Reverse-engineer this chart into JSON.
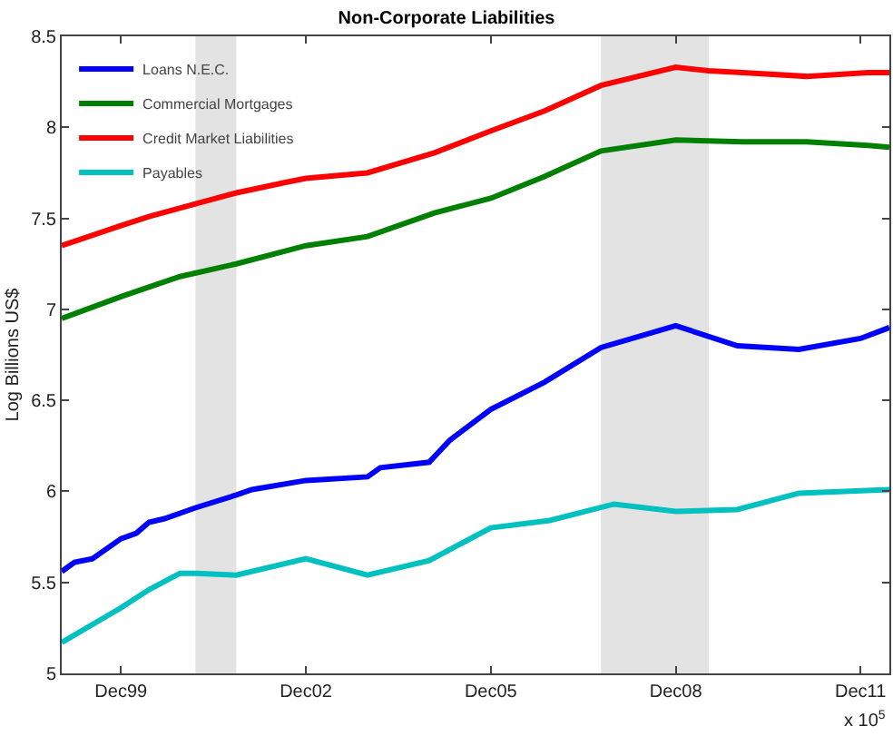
{
  "chart_data": {
    "type": "line",
    "title": "Non-Corporate Liabilities",
    "ylabel": "Log Billions US$",
    "xlim": [
      "1998-12-15",
      "2012-05-20"
    ],
    "xticks": [
      {
        "value": "1999-12-01",
        "label": "Dec99"
      },
      {
        "value": "2002-12-01",
        "label": "Dec02"
      },
      {
        "value": "2005-12-01",
        "label": "Dec05"
      },
      {
        "value": "2008-12-01",
        "label": "Dec08"
      },
      {
        "value": "2011-12-01",
        "label": "Dec11"
      }
    ],
    "ylim": [
      5,
      8.5
    ],
    "yticks": [
      5,
      5.5,
      6,
      6.5,
      7,
      7.5,
      8,
      8.5
    ],
    "grid": false,
    "legend": "top left",
    "line_style": "solid",
    "marker": "none",
    "bands": [
      {
        "axis": "x",
        "from": "2001-02-15",
        "to": "2001-10-15",
        "color": "#e3e3e3"
      },
      {
        "axis": "x",
        "from": "2007-09-15",
        "to": "2009-06-15",
        "color": "#e3e3e3"
      }
    ],
    "annotations": [
      "x 10$^{5}$"
    ],
    "series": [
      {
        "name": "Loans N.E.C.",
        "color": "#0000ff",
        "x": [
          "1998-12-15",
          "1999-03-01",
          "1999-06-15",
          "1999-12-01",
          "2000-03-01",
          "2000-05-15",
          "2000-08-15",
          "2001-02-15",
          "2001-10-15",
          "2002-01-15",
          "2002-12-01",
          "2003-12-01",
          "2004-02-15",
          "2004-12-01",
          "2005-04-01",
          "2005-12-01",
          "2006-10-15",
          "2007-09-15",
          "2008-12-01",
          "2009-12-01",
          "2010-12-01",
          "2011-12-01",
          "2012-05-20"
        ],
        "values": [
          5.56,
          5.61,
          5.63,
          5.74,
          5.77,
          5.83,
          5.85,
          5.91,
          5.98,
          6.01,
          6.06,
          6.08,
          6.13,
          6.16,
          6.28,
          6.45,
          6.6,
          6.79,
          6.91,
          6.8,
          6.78,
          6.84,
          6.9
        ]
      },
      {
        "name": "Commercial Mortgages",
        "color": "#008000",
        "x": [
          "1998-12-15",
          "1999-12-01",
          "2000-11-15",
          "2001-10-15",
          "2002-12-01",
          "2003-12-01",
          "2005-01-01",
          "2005-12-01",
          "2006-10-15",
          "2007-09-15",
          "2008-12-01",
          "2010-01-01",
          "2011-01-15",
          "2012-01-15",
          "2012-05-20"
        ],
        "values": [
          6.95,
          7.07,
          7.18,
          7.25,
          7.35,
          7.4,
          7.53,
          7.61,
          7.73,
          7.87,
          7.93,
          7.92,
          7.92,
          7.9,
          7.89
        ]
      },
      {
        "name": "Credit Market Liabilities",
        "color": "#ff0000",
        "x": [
          "1998-12-15",
          "1999-12-01",
          "2000-05-15",
          "2001-02-15",
          "2001-10-15",
          "2002-08-15",
          "2002-12-01",
          "2003-12-01",
          "2005-01-01",
          "2005-12-01",
          "2006-10-15",
          "2007-09-15",
          "2008-12-01",
          "2009-06-15",
          "2010-01-01",
          "2011-01-15",
          "2012-01-15",
          "2012-05-20"
        ],
        "values": [
          7.35,
          7.46,
          7.51,
          7.58,
          7.64,
          7.7,
          7.72,
          7.75,
          7.86,
          7.98,
          8.09,
          8.23,
          8.33,
          8.31,
          8.3,
          8.28,
          8.3,
          8.3
        ]
      },
      {
        "name": "Payables",
        "color": "#00c0c0",
        "x": [
          "1998-12-15",
          "1999-12-01",
          "2000-05-15",
          "2000-11-15",
          "2001-02-15",
          "2001-10-15",
          "2002-12-01",
          "2003-12-01",
          "2004-12-01",
          "2005-12-01",
          "2006-11-15",
          "2007-12-01",
          "2008-12-01",
          "2009-12-01",
          "2010-12-01",
          "2012-05-20"
        ],
        "values": [
          5.17,
          5.36,
          5.46,
          5.55,
          5.55,
          5.54,
          5.63,
          5.54,
          5.62,
          5.8,
          5.84,
          5.93,
          5.89,
          5.9,
          5.99,
          6.01
        ]
      }
    ]
  }
}
